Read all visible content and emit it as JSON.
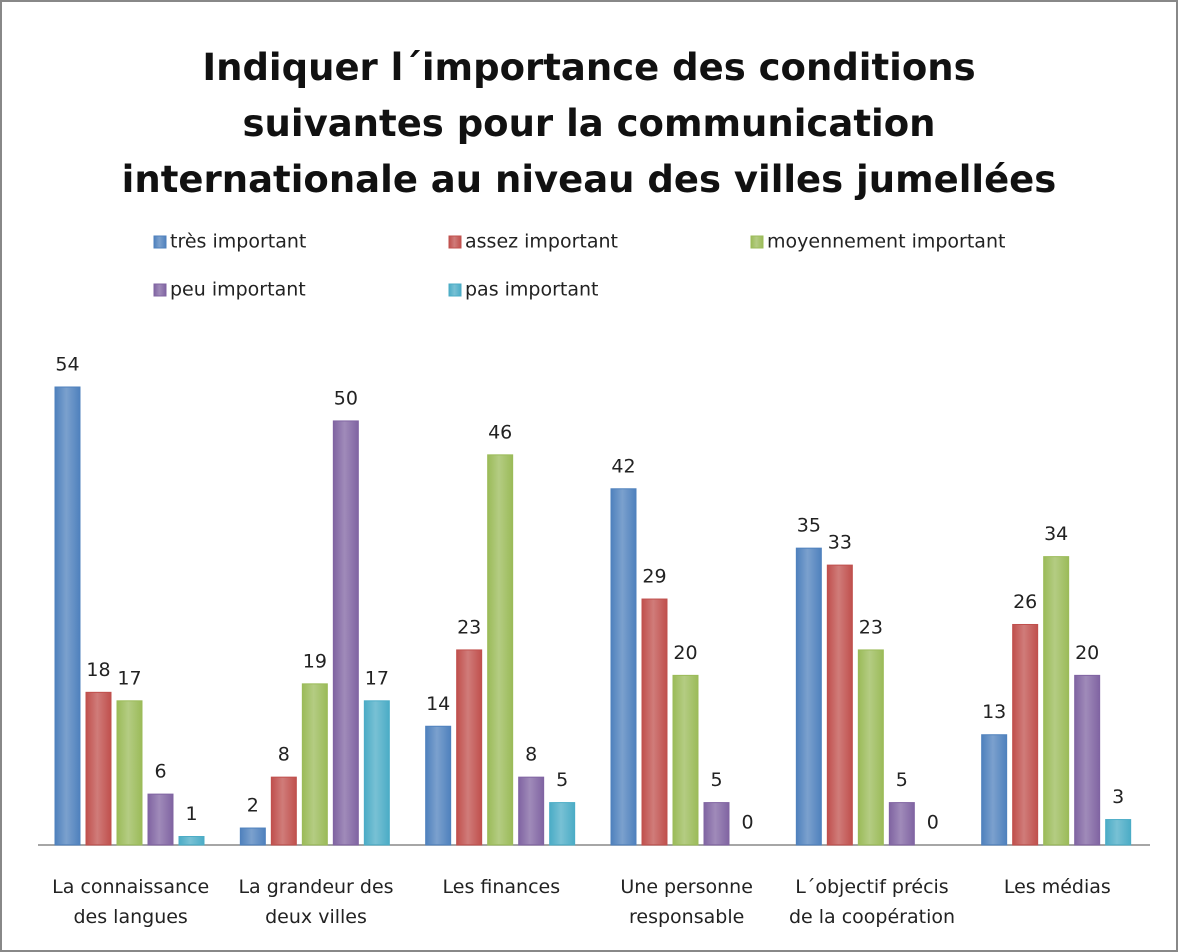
{
  "chart_data": {
    "type": "bar",
    "title": "Indiquer l´importance des conditions suivantes pour la communication internationale au niveau des villes jumellées",
    "categories": [
      "La connaissance des langues",
      "La grandeur des deux villes",
      "Les finances",
      "Une personne responsable",
      "L´objectif précis de la coopération",
      "Les médias"
    ],
    "series": [
      {
        "name": "très important",
        "color": "#4f81bd",
        "values": [
          54,
          2,
          14,
          42,
          35,
          13
        ]
      },
      {
        "name": "assez important",
        "color": "#c0504d",
        "values": [
          18,
          8,
          23,
          29,
          33,
          26
        ]
      },
      {
        "name": "moyennement important",
        "color": "#9bbb59",
        "values": [
          17,
          19,
          46,
          20,
          23,
          34
        ]
      },
      {
        "name": "peu important",
        "color": "#8064a2",
        "values": [
          6,
          50,
          8,
          5,
          5,
          20
        ]
      },
      {
        "name": "pas important",
        "color": "#4bacc6",
        "values": [
          1,
          17,
          5,
          0,
          0,
          3
        ]
      }
    ],
    "legend": "top"
  }
}
